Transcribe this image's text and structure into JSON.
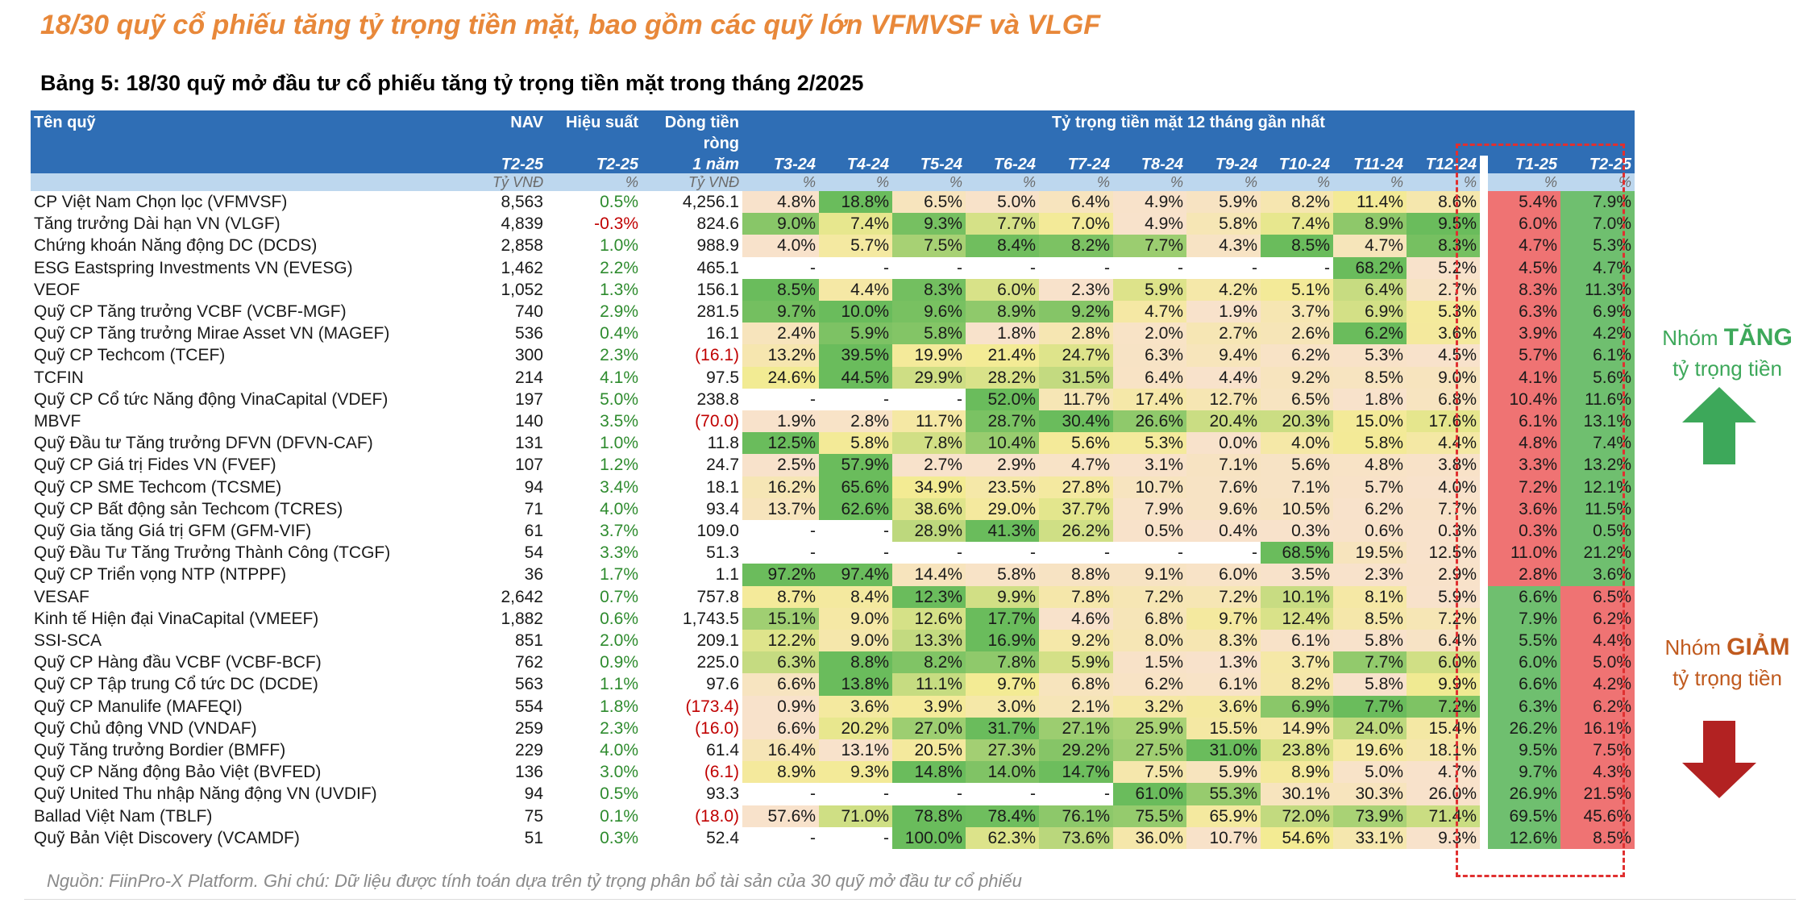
{
  "headline": "18/30 quỹ cổ phiếu tăng tỷ trọng tiền mặt, bao gồm các quỹ lớn VFMVSF và VLGF",
  "table_title": "Bảng 5: 18/30 quỹ mở đầu tư cổ phiếu tăng tỷ trọng tiền mặt trong tháng 2/2025",
  "header": {
    "fund_name": "Tên quỹ",
    "nav": "NAV",
    "perf": "Hiệu suất",
    "flow_line1": "Dòng tiền",
    "flow_line2": "ròng",
    "cash_weight": "Tỷ trọng tiền mặt 12 tháng gần nhất",
    "nav_period": "T2-25",
    "perf_period": "T2-25",
    "flow_period": "1 năm",
    "months": [
      "T3-24",
      "T4-24",
      "T5-24",
      "T6-24",
      "T7-24",
      "T8-24",
      "T9-24",
      "T10-24",
      "T11-24",
      "T12-24",
      "T1-25",
      "T2-25"
    ],
    "unit_vnd": "Tỷ VNĐ",
    "unit_pct": "%"
  },
  "rows": [
    {
      "name": "CP Việt Nam Chọn lọc (VFMVSF)",
      "nav": "8,563",
      "perf": "0.5%",
      "flow": "4,256.1",
      "cash": [
        "4.8%",
        "18.8%",
        "6.5%",
        "5.0%",
        "6.4%",
        "4.9%",
        "5.9%",
        "8.2%",
        "11.4%",
        "8.6%",
        "5.4%",
        "7.9%"
      ]
    },
    {
      "name": "Tăng trưởng Dài hạn VN (VLGF)",
      "nav": "4,839",
      "perf": "-0.3%",
      "flow": "824.6",
      "cash": [
        "9.0%",
        "7.4%",
        "9.3%",
        "7.7%",
        "7.0%",
        "4.9%",
        "5.8%",
        "7.4%",
        "8.9%",
        "9.5%",
        "6.0%",
        "7.0%"
      ]
    },
    {
      "name": "Chứng khoán Năng động DC (DCDS)",
      "nav": "2,858",
      "perf": "1.0%",
      "flow": "988.9",
      "cash": [
        "4.0%",
        "5.7%",
        "7.5%",
        "8.4%",
        "8.2%",
        "7.7%",
        "4.3%",
        "8.5%",
        "4.7%",
        "8.3%",
        "4.7%",
        "5.3%"
      ]
    },
    {
      "name": "ESG Eastspring Investments VN (EVESG)",
      "nav": "1,462",
      "perf": "2.2%",
      "flow": "465.1",
      "cash": [
        "-",
        "-",
        "-",
        "-",
        "-",
        "-",
        "-",
        "-",
        "68.2%",
        "5.2%",
        "4.5%",
        "4.7%"
      ]
    },
    {
      "name": "VEOF",
      "nav": "1,052",
      "perf": "1.3%",
      "flow": "156.1",
      "cash": [
        "8.5%",
        "4.4%",
        "8.3%",
        "6.0%",
        "2.3%",
        "5.9%",
        "4.2%",
        "5.1%",
        "6.4%",
        "2.7%",
        "8.3%",
        "11.3%"
      ]
    },
    {
      "name": "Quỹ CP Tăng trưởng VCBF (VCBF-MGF)",
      "nav": "740",
      "perf": "2.9%",
      "flow": "281.5",
      "cash": [
        "9.7%",
        "10.0%",
        "9.6%",
        "8.9%",
        "9.2%",
        "4.7%",
        "1.9%",
        "3.7%",
        "6.9%",
        "5.3%",
        "6.3%",
        "6.9%"
      ]
    },
    {
      "name": "Quỹ CP Tăng trưởng Mirae Asset VN (MAGEF)",
      "nav": "536",
      "perf": "0.4%",
      "flow": "16.1",
      "cash": [
        "2.4%",
        "5.9%",
        "5.8%",
        "1.8%",
        "2.8%",
        "2.0%",
        "2.7%",
        "2.6%",
        "6.2%",
        "3.6%",
        "3.9%",
        "4.2%"
      ]
    },
    {
      "name": "Quỹ CP Techcom (TCEF)",
      "nav": "300",
      "perf": "2.3%",
      "flow": "(16.1)",
      "cash": [
        "13.2%",
        "39.5%",
        "19.9%",
        "21.4%",
        "24.7%",
        "6.3%",
        "9.4%",
        "6.2%",
        "5.3%",
        "4.5%",
        "5.7%",
        "6.1%"
      ]
    },
    {
      "name": "TCFIN",
      "nav": "214",
      "perf": "4.1%",
      "flow": "97.5",
      "cash": [
        "24.6%",
        "44.5%",
        "29.9%",
        "28.2%",
        "31.5%",
        "6.4%",
        "4.4%",
        "9.2%",
        "8.5%",
        "9.0%",
        "4.1%",
        "5.6%"
      ]
    },
    {
      "name": "Quỹ CP Cổ tức Năng động VinaCapital (VDEF)",
      "nav": "197",
      "perf": "5.0%",
      "flow": "238.8",
      "cash": [
        "-",
        "-",
        "-",
        "52.0%",
        "11.7%",
        "17.4%",
        "12.7%",
        "6.5%",
        "1.8%",
        "6.8%",
        "10.4%",
        "11.6%"
      ]
    },
    {
      "name": "MBVF",
      "nav": "140",
      "perf": "3.5%",
      "flow": "(70.0)",
      "cash": [
        "1.9%",
        "2.8%",
        "11.7%",
        "28.7%",
        "30.4%",
        "26.6%",
        "20.4%",
        "20.3%",
        "15.0%",
        "17.6%",
        "6.1%",
        "13.1%"
      ]
    },
    {
      "name": "Quỹ Đầu tư Tăng trưởng DFVN (DFVN-CAF)",
      "nav": "131",
      "perf": "1.0%",
      "flow": "11.8",
      "cash": [
        "12.5%",
        "5.8%",
        "7.8%",
        "10.4%",
        "5.6%",
        "5.3%",
        "0.0%",
        "4.0%",
        "5.8%",
        "4.4%",
        "4.8%",
        "7.4%"
      ]
    },
    {
      "name": "Quỹ CP Giá trị Fides VN (FVEF)",
      "nav": "107",
      "perf": "1.2%",
      "flow": "24.7",
      "cash": [
        "2.5%",
        "57.9%",
        "2.7%",
        "2.9%",
        "4.7%",
        "3.1%",
        "7.1%",
        "5.6%",
        "4.8%",
        "3.8%",
        "3.3%",
        "13.2%"
      ]
    },
    {
      "name": "Quỹ CP SME Techcom (TCSME)",
      "nav": "94",
      "perf": "3.4%",
      "flow": "18.1",
      "cash": [
        "16.2%",
        "65.6%",
        "34.9%",
        "23.5%",
        "27.8%",
        "10.7%",
        "7.6%",
        "7.1%",
        "5.7%",
        "4.0%",
        "7.2%",
        "12.1%"
      ]
    },
    {
      "name": "Quỹ CP Bất động sản Techcom (TCRES)",
      "nav": "71",
      "perf": "4.0%",
      "flow": "93.4",
      "cash": [
        "13.7%",
        "62.6%",
        "38.6%",
        "29.0%",
        "37.7%",
        "7.9%",
        "9.6%",
        "10.5%",
        "6.2%",
        "7.7%",
        "3.6%",
        "11.5%"
      ]
    },
    {
      "name": "Quỹ Gia tăng Giá trị GFM (GFM-VIF)",
      "nav": "61",
      "perf": "3.7%",
      "flow": "109.0",
      "cash": [
        "-",
        "-",
        "28.9%",
        "41.3%",
        "26.2%",
        "0.5%",
        "0.4%",
        "0.3%",
        "0.6%",
        "0.3%",
        "0.3%",
        "0.5%"
      ]
    },
    {
      "name": "Quỹ Đầu Tư Tăng Trưởng Thành Công (TCGF)",
      "nav": "54",
      "perf": "3.3%",
      "flow": "51.3",
      "cash": [
        "-",
        "-",
        "-",
        "-",
        "-",
        "-",
        "-",
        "68.5%",
        "19.5%",
        "12.5%",
        "11.0%",
        "21.2%"
      ]
    },
    {
      "name": "Quỹ CP Triển vọng NTP (NTPPF)",
      "nav": "36",
      "perf": "1.7%",
      "flow": "1.1",
      "cash": [
        "97.2%",
        "97.4%",
        "14.4%",
        "5.8%",
        "8.8%",
        "9.1%",
        "6.0%",
        "3.5%",
        "2.3%",
        "2.9%",
        "2.8%",
        "3.6%"
      ]
    },
    {
      "name": "VESAF",
      "nav": "2,642",
      "perf": "0.7%",
      "flow": "757.8",
      "cash": [
        "8.7%",
        "8.4%",
        "12.3%",
        "9.9%",
        "7.8%",
        "7.2%",
        "7.2%",
        "10.1%",
        "8.1%",
        "5.9%",
        "6.6%",
        "6.5%"
      ]
    },
    {
      "name": "Kinh tế Hiện đại VinaCapital (VMEEF)",
      "nav": "1,882",
      "perf": "0.6%",
      "flow": "1,743.5",
      "cash": [
        "15.1%",
        "9.0%",
        "12.6%",
        "17.7%",
        "4.6%",
        "6.8%",
        "9.7%",
        "12.4%",
        "8.5%",
        "7.2%",
        "7.9%",
        "6.2%"
      ]
    },
    {
      "name": "SSI-SCA",
      "nav": "851",
      "perf": "2.0%",
      "flow": "209.1",
      "cash": [
        "12.2%",
        "9.0%",
        "13.3%",
        "16.9%",
        "9.2%",
        "8.0%",
        "8.3%",
        "6.1%",
        "5.8%",
        "6.4%",
        "5.5%",
        "4.4%"
      ]
    },
    {
      "name": "Quỹ CP Hàng đầu VCBF (VCBF-BCF)",
      "nav": "762",
      "perf": "0.9%",
      "flow": "225.0",
      "cash": [
        "6.3%",
        "8.8%",
        "8.2%",
        "7.8%",
        "5.9%",
        "1.5%",
        "1.3%",
        "3.7%",
        "7.7%",
        "6.0%",
        "6.0%",
        "5.0%"
      ]
    },
    {
      "name": "Quỹ CP Tập trung Cổ tức DC (DCDE)",
      "nav": "563",
      "perf": "1.1%",
      "flow": "97.6",
      "cash": [
        "6.6%",
        "13.8%",
        "11.1%",
        "9.7%",
        "6.8%",
        "6.2%",
        "6.1%",
        "8.2%",
        "5.8%",
        "9.9%",
        "6.6%",
        "4.2%"
      ]
    },
    {
      "name": "Quỹ CP Manulife (MAFEQI)",
      "nav": "554",
      "perf": "1.8%",
      "flow": "(173.4)",
      "cash": [
        "0.9%",
        "3.6%",
        "3.9%",
        "3.0%",
        "2.1%",
        "3.2%",
        "3.6%",
        "6.9%",
        "7.7%",
        "7.2%",
        "6.3%",
        "6.2%"
      ]
    },
    {
      "name": "Quỹ Chủ động VND (VNDAF)",
      "nav": "259",
      "perf": "2.3%",
      "flow": "(16.0)",
      "cash": [
        "6.6%",
        "20.2%",
        "27.0%",
        "31.7%",
        "27.1%",
        "25.9%",
        "15.5%",
        "14.9%",
        "24.0%",
        "15.4%",
        "26.2%",
        "16.1%"
      ]
    },
    {
      "name": "Quỹ Tăng trưởng Bordier (BMFF)",
      "nav": "229",
      "perf": "4.0%",
      "flow": "61.4",
      "cash": [
        "16.4%",
        "13.1%",
        "20.5%",
        "27.3%",
        "29.2%",
        "27.5%",
        "31.0%",
        "23.8%",
        "19.6%",
        "18.1%",
        "9.5%",
        "7.5%"
      ]
    },
    {
      "name": "Quỹ CP Năng động Bảo Việt (BVFED)",
      "nav": "136",
      "perf": "3.0%",
      "flow": "(6.1)",
      "cash": [
        "8.9%",
        "9.3%",
        "14.8%",
        "14.0%",
        "14.7%",
        "7.5%",
        "5.9%",
        "8.9%",
        "5.0%",
        "4.7%",
        "9.7%",
        "4.3%"
      ]
    },
    {
      "name": "Quỹ United Thu nhập Năng động VN (UVDIF)",
      "nav": "94",
      "perf": "0.5%",
      "flow": "93.3",
      "cash": [
        "-",
        "-",
        "-",
        "-",
        "-",
        "61.0%",
        "55.3%",
        "30.1%",
        "30.3%",
        "26.0%",
        "26.9%",
        "21.5%"
      ]
    },
    {
      "name": "Ballad Việt Nam (TBLF)",
      "nav": "75",
      "perf": "0.1%",
      "flow": "(18.0)",
      "cash": [
        "57.6%",
        "71.0%",
        "78.8%",
        "78.4%",
        "76.1%",
        "75.5%",
        "65.9%",
        "72.0%",
        "73.9%",
        "71.4%",
        "69.5%",
        "45.6%"
      ]
    },
    {
      "name": "Quỹ Bản Việt Discovery (VCAMDF)",
      "nav": "51",
      "perf": "0.3%",
      "flow": "52.4",
      "cash": [
        "-",
        "-",
        "100.0%",
        "62.3%",
        "73.6%",
        "36.0%",
        "10.7%",
        "54.6%",
        "33.1%",
        "9.3%",
        "12.6%",
        "8.5%"
      ]
    }
  ],
  "groups": {
    "increase_prefix": "Nhóm",
    "increase_word": "TĂNG",
    "increase_suffix": "tỷ trọng tiền",
    "decrease_prefix": "Nhóm",
    "decrease_word": "GIẢM",
    "decrease_suffix": "tỷ trọng tiền"
  },
  "colors": {
    "header_blue": "#2F6EB5",
    "unit_row": "#BDD7EE",
    "increase_green": "#3DA85A",
    "decrease_red": "#B22222",
    "highlight_red": "#EF7373",
    "highlight_green": "#6FBF6F"
  },
  "source_note": "Nguồn: FiinPro-X Platform. Ghi chú: Dữ liệu được tính toán dựa trên tỷ trọng phân bổ tài sản của 30 quỹ mở đầu tư cổ phiếu"
}
